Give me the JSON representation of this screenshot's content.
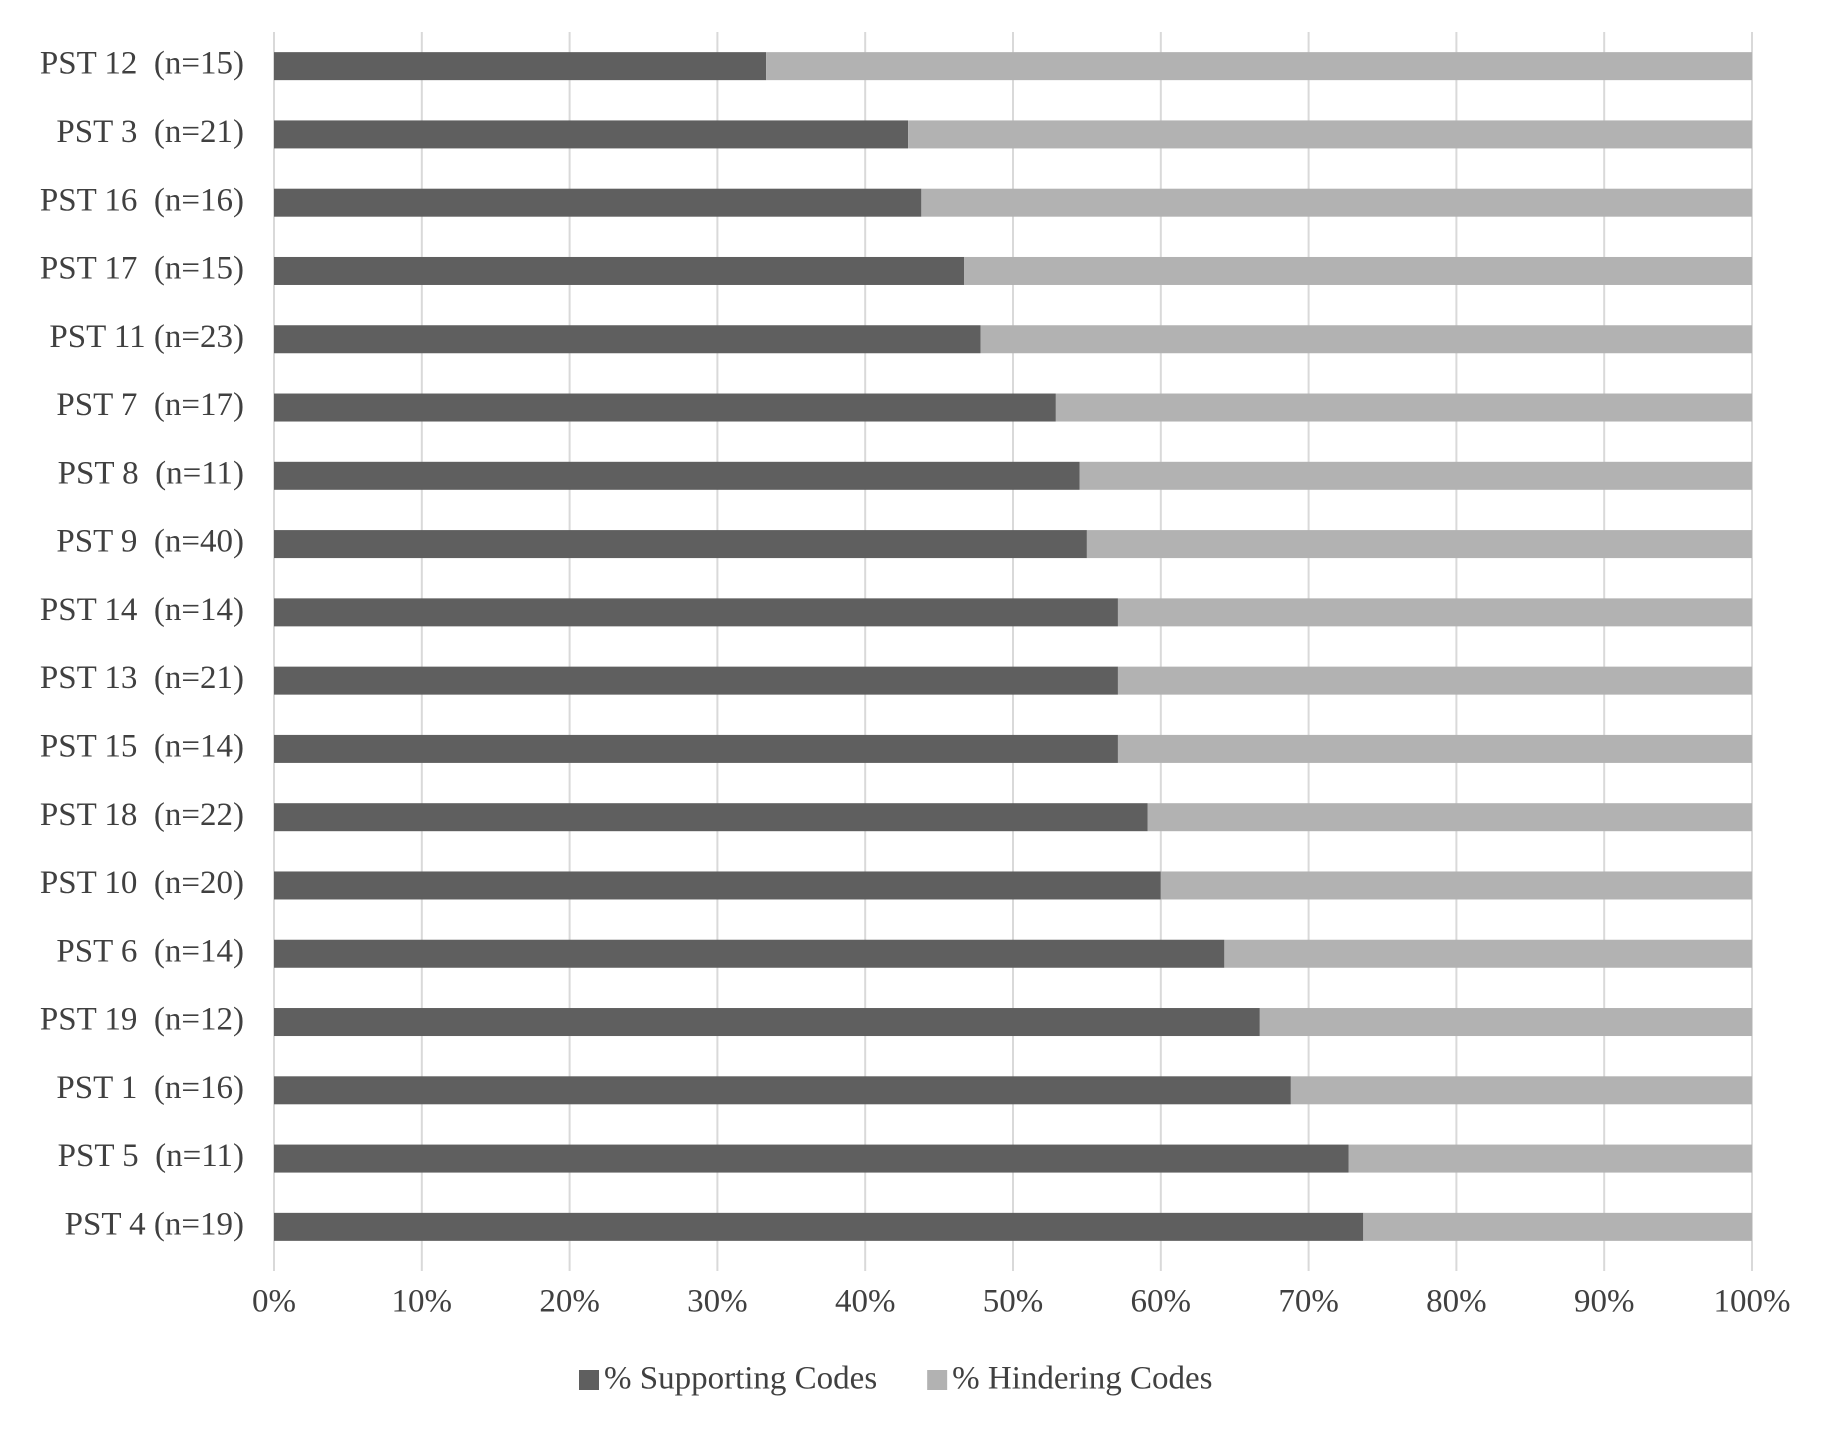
{
  "chart_data": {
    "type": "stacked_barh",
    "categories": [
      "PST 12  (n=15)",
      "PST 3  (n=21)",
      "PST 16  (n=16)",
      "PST 17  (n=15)",
      "PST 11 (n=23)",
      "PST 7  (n=17)",
      "PST 8  (n=11)",
      "PST 9  (n=40)",
      "PST 14  (n=14)",
      "PST 13  (n=21)",
      "PST 15  (n=14)",
      "PST 18  (n=22)",
      "PST 10  (n=20)",
      "PST 6  (n=14)",
      "PST 19  (n=12)",
      "PST 1  (n=16)",
      "PST 5  (n=11)",
      "PST 4 (n=19)"
    ],
    "series": [
      {
        "name": "% Supporting Codes",
        "color": "#5f5f5f",
        "values": [
          33.3,
          42.9,
          43.8,
          46.7,
          47.8,
          52.9,
          54.5,
          55.0,
          57.1,
          57.1,
          57.1,
          59.1,
          60.0,
          64.3,
          66.7,
          68.8,
          72.7,
          73.7
        ]
      },
      {
        "name": "% Hindering Codes",
        "color": "#b2b2b2",
        "values": [
          66.7,
          57.1,
          56.2,
          53.3,
          52.2,
          47.1,
          45.5,
          45.0,
          42.9,
          42.9,
          42.9,
          40.9,
          40.0,
          35.7,
          33.3,
          31.2,
          27.3,
          26.3
        ]
      }
    ],
    "xlim": [
      0,
      100
    ],
    "xticks": [
      {
        "value": 0,
        "label": "0%"
      },
      {
        "value": 10,
        "label": "10%"
      },
      {
        "value": 20,
        "label": "20%"
      },
      {
        "value": 30,
        "label": "30%"
      },
      {
        "value": 40,
        "label": "40%"
      },
      {
        "value": 50,
        "label": "50%"
      },
      {
        "value": 60,
        "label": "60%"
      },
      {
        "value": 70,
        "label": "70%"
      },
      {
        "value": 80,
        "label": "80%"
      },
      {
        "value": 90,
        "label": "90%"
      },
      {
        "value": 100,
        "label": "100%"
      }
    ],
    "grid": true,
    "legend": "bottom"
  }
}
